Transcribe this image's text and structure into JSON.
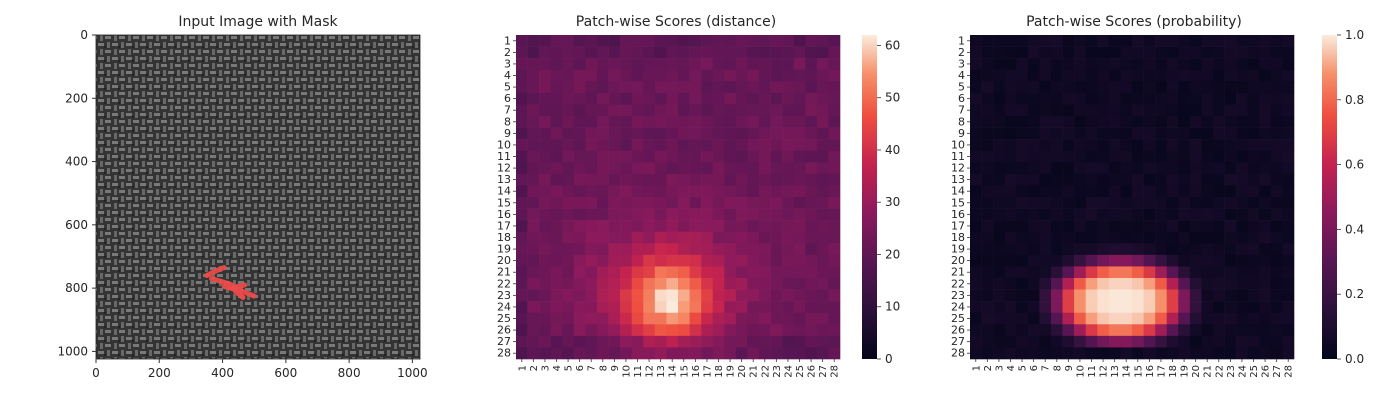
{
  "chart_data": [
    {
      "type": "image",
      "title": "Input Image with Mask",
      "x_ticks": [
        0,
        200,
        400,
        600,
        800,
        1000
      ],
      "y_ticks": [
        0,
        200,
        400,
        600,
        800,
        1000
      ],
      "xlim": [
        0,
        1024
      ],
      "ylim": [
        1024,
        0
      ],
      "mask_color": "#f04a4a",
      "mask_strokes": [
        [
          [
            350,
            760
          ],
          [
            380,
            745
          ],
          [
            405,
            735
          ]
        ],
        [
          [
            365,
            770
          ],
          [
            400,
            780
          ],
          [
            430,
            790
          ]
        ],
        [
          [
            405,
            795
          ],
          [
            450,
            805
          ],
          [
            500,
            825
          ]
        ],
        [
          [
            425,
            800
          ],
          [
            470,
            790
          ]
        ],
        [
          [
            440,
            810
          ],
          [
            465,
            830
          ]
        ]
      ]
    },
    {
      "type": "heatmap",
      "title": "Patch-wise Scores (distance)",
      "x_ticks": [
        "1",
        "2",
        "3",
        "4",
        "5",
        "6",
        "7",
        "8",
        "9",
        "10",
        "11",
        "12",
        "13",
        "14",
        "15",
        "16",
        "17",
        "18",
        "19",
        "20",
        "21",
        "22",
        "23",
        "24",
        "25",
        "26",
        "27",
        "28"
      ],
      "y_ticks": [
        "1",
        "2",
        "3",
        "4",
        "5",
        "6",
        "7",
        "8",
        "9",
        "10",
        "11",
        "12",
        "13",
        "14",
        "15",
        "16",
        "17",
        "18",
        "19",
        "20",
        "21",
        "22",
        "23",
        "24",
        "25",
        "26",
        "27",
        "28"
      ],
      "colorbar_ticks": [
        0,
        10,
        20,
        30,
        40,
        50,
        60
      ],
      "vmin": 0,
      "vmax": 62,
      "background_value": 22,
      "hotspot": {
        "center_row": 23.5,
        "center_col": 13.8,
        "peak": 62,
        "sigma_row": 2.4,
        "sigma_col": 2.6
      }
    },
    {
      "type": "heatmap",
      "title": "Patch-wise Scores (probability)",
      "x_ticks": [
        "1",
        "2",
        "3",
        "4",
        "5",
        "6",
        "7",
        "8",
        "9",
        "10",
        "11",
        "12",
        "13",
        "14",
        "15",
        "16",
        "17",
        "18",
        "19",
        "20",
        "21",
        "22",
        "23",
        "24",
        "25",
        "26",
        "27",
        "28"
      ],
      "y_ticks": [
        "1",
        "2",
        "3",
        "4",
        "5",
        "6",
        "7",
        "8",
        "9",
        "10",
        "11",
        "12",
        "13",
        "14",
        "15",
        "16",
        "17",
        "18",
        "19",
        "20",
        "21",
        "22",
        "23",
        "24",
        "25",
        "26",
        "27",
        "28"
      ],
      "colorbar_ticks": [
        "0.0",
        "0.2",
        "0.4",
        "0.6",
        "0.8",
        "1.0"
      ],
      "vmin": 0,
      "vmax": 1,
      "background_value": 0.02,
      "hotspot": {
        "center_row": 23.5,
        "center_col": 13.5,
        "peak": 1.0,
        "rows": [
          19,
          27
        ],
        "cols": [
          7,
          20
        ]
      }
    }
  ]
}
